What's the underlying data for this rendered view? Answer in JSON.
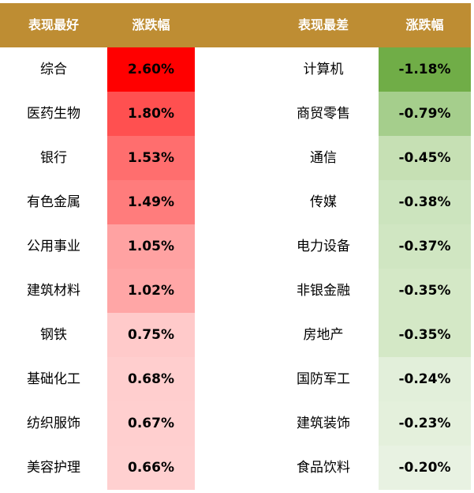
{
  "header": {
    "best_label": "表现最好",
    "best_change_label": "涨跌幅",
    "worst_label": "表现最差",
    "worst_change_label": "涨跌幅"
  },
  "colors": {
    "header_bg": "#BE8D33",
    "best_shades": [
      "#FF0000",
      "#FF5050",
      "#FF6E6E",
      "#FF7C7C",
      "#FFA2A2",
      "#FFA6A6",
      "#FFCACA",
      "#FFCECE",
      "#FFCFCF",
      "#FFD0D0"
    ],
    "worst_shades": [
      "#70AD47",
      "#A5CE8C",
      "#C6E0B4",
      "#CCE4BE",
      "#D0E6C2",
      "#D4E8C6",
      "#D4E8C6",
      "#E2EFDA",
      "#E4F0DC",
      "#E8F2E2"
    ]
  },
  "rows": [
    {
      "best_name": "综合",
      "best_value": "2.60%",
      "worst_name": "计算机",
      "worst_value": "-1.18%"
    },
    {
      "best_name": "医药生物",
      "best_value": "1.80%",
      "worst_name": "商贸零售",
      "worst_value": "-0.79%"
    },
    {
      "best_name": "银行",
      "best_value": "1.53%",
      "worst_name": "通信",
      "worst_value": "-0.45%"
    },
    {
      "best_name": "有色金属",
      "best_value": "1.49%",
      "worst_name": "传媒",
      "worst_value": "-0.38%"
    },
    {
      "best_name": "公用事业",
      "best_value": "1.05%",
      "worst_name": "电力设备",
      "worst_value": "-0.37%"
    },
    {
      "best_name": "建筑材料",
      "best_value": "1.02%",
      "worst_name": "非银金融",
      "worst_value": "-0.35%"
    },
    {
      "best_name": "钢铁",
      "best_value": "0.75%",
      "worst_name": "房地产",
      "worst_value": "-0.35%"
    },
    {
      "best_name": "基础化工",
      "best_value": "0.68%",
      "worst_name": "国防军工",
      "worst_value": "-0.24%"
    },
    {
      "best_name": "纺织服饰",
      "best_value": "0.67%",
      "worst_name": "建筑装饰",
      "worst_value": "-0.23%"
    },
    {
      "best_name": "美容护理",
      "best_value": "0.66%",
      "worst_name": "食品饮料",
      "worst_value": "-0.20%"
    }
  ]
}
